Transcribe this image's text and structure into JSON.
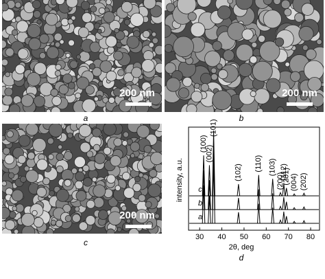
{
  "panels": [
    {
      "label": "a",
      "scale_bar": "200 nm"
    },
    {
      "label": "b",
      "scale_bar": "200 nm"
    },
    {
      "label": "c",
      "scale_bar": "200 nm"
    }
  ],
  "chart_data": {
    "type": "xrd",
    "panel_label": "d",
    "xlabel": "2θ, deg",
    "ylabel": "intensity, a.u.",
    "xlim": [
      25,
      84
    ],
    "xticks": [
      30,
      40,
      50,
      60,
      70,
      80
    ],
    "ylim": [
      0,
      100
    ],
    "peaks": [
      31.8,
      34.4,
      36.3,
      47.5,
      56.6,
      62.9,
      66.4,
      67.9,
      69.1,
      72.6,
      77.0
    ],
    "peak_labels": [
      "(100)",
      "(002)",
      "(101)",
      "(102)",
      "(110)",
      "(103)",
      "(200)",
      "(112)",
      "(201)",
      "(004)",
      "(202)"
    ],
    "series": [
      {
        "name": "a",
        "color": "#000000",
        "values": [
          58,
          42,
          95,
          17,
          30,
          24,
          5,
          18,
          11,
          3,
          4
        ]
      },
      {
        "name": "b",
        "color": "#000000",
        "values": [
          60,
          45,
          98,
          18,
          31,
          25,
          5,
          19,
          12,
          3,
          4
        ]
      },
      {
        "name": "c",
        "color": "#000000",
        "values": [
          62,
          47,
          100,
          18,
          32,
          26,
          5,
          19,
          12,
          3,
          4
        ]
      }
    ]
  }
}
